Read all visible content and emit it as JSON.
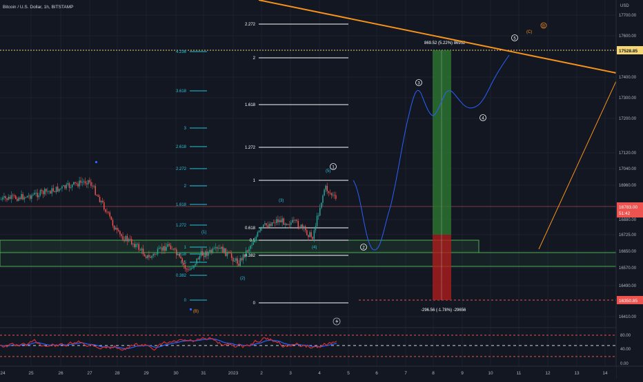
{
  "header": {
    "symbol_title": "Bitcoin / U.S. Dollar, 1h, BITSTAMP",
    "currency": "USD"
  },
  "price_axis": {
    "ticks": [
      "17700.00",
      "17600.00",
      "17400.00",
      "17300.00",
      "17200.00",
      "17120.00",
      "17040.00",
      "16960.00",
      "16880.00",
      "16725.00",
      "16650.00",
      "16570.00",
      "16490.00",
      "16410.00",
      "16275.00"
    ],
    "tag_top": "17528.85",
    "tag_current_price": "16783.00",
    "tag_countdown": "51:42",
    "tag_bottom": "16350.85"
  },
  "osc_axis": {
    "ticks": [
      "80.00",
      "40.00",
      "0.00"
    ]
  },
  "time_axis": {
    "labels": [
      "24",
      "25",
      "26",
      "27",
      "28",
      "29",
      "30",
      "31",
      "2023",
      "2",
      "3",
      "4",
      "5",
      "6",
      "7",
      "8",
      "9",
      "10",
      "11",
      "12",
      "13",
      "14"
    ]
  },
  "fib_left": [
    "4.236",
    "3.618",
    "3",
    "2.618",
    "2.272",
    "2",
    "1.618",
    "1.272",
    "1",
    "0.618",
    "0.5",
    "0.382",
    "0"
  ],
  "fib_right": [
    "2.272",
    "2",
    "1.618",
    "1.272",
    "1",
    "0.618",
    "0.5",
    "0.382",
    "0"
  ],
  "wave_labels": {
    "left_small": [
      "(1)",
      "(2)",
      "(3)",
      "(4)",
      "(5)"
    ],
    "circled": [
      "1",
      "2",
      "3",
      "4",
      "5"
    ],
    "orange": [
      "(B)",
      "(C)",
      "B"
    ]
  },
  "position_tool": {
    "target_text": "869.52 (5.22%) 86952",
    "stop_text": "-296.56 (-1.78%) -29656"
  },
  "colors": {
    "background": "#131722",
    "up_candle": "#26a69a",
    "down_candle": "#ef5350",
    "fib_teal": "#26c6da",
    "fib_white": "#ffffff",
    "trendline": "#f7931a",
    "projection": "#2962ff",
    "zone": "#4caf50",
    "profit": "#2e7d32",
    "loss": "#b71c1c",
    "rsi_line": "#d32f2f",
    "rsi_signal": "#2962ff"
  },
  "icons": {
    "lightning": "lightning-icon"
  }
}
